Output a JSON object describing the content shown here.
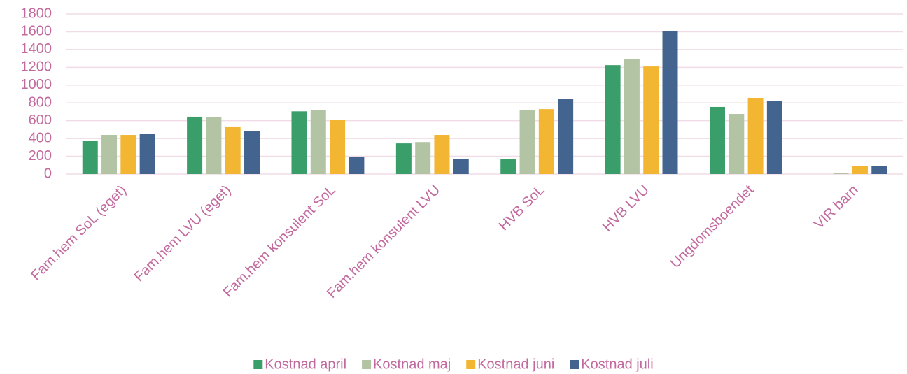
{
  "chart_data": {
    "type": "bar",
    "categories": [
      "Fam.hem SoL (eget)",
      "Fam.hem LVU (eget)",
      "Fam.hem konsulent SoL",
      "Fam.hem konsulent LVU",
      "HVB SoL",
      "HVB LVU",
      "Ungdomsboendet",
      "VIR barn"
    ],
    "series": [
      {
        "name": "Kostnad april",
        "color": "#3a9e6a",
        "values": [
          375,
          645,
          705,
          345,
          165,
          1225,
          755,
          0
        ]
      },
      {
        "name": "Kostnad maj",
        "color": "#b3c4a5",
        "values": [
          440,
          637,
          720,
          360,
          720,
          1295,
          676,
          15
        ]
      },
      {
        "name": "Kostnad juni",
        "color": "#f2b632",
        "values": [
          440,
          535,
          613,
          440,
          730,
          1210,
          857,
          94
        ]
      },
      {
        "name": "Kostnad juli",
        "color": "#43648f",
        "values": [
          450,
          487,
          189,
          173,
          848,
          1610,
          818,
          94
        ]
      }
    ],
    "ylim": [
      0,
      1800
    ],
    "yticks": [
      0,
      200,
      400,
      600,
      800,
      1000,
      1200,
      1400,
      1600,
      1800
    ],
    "grid": true,
    "legend": "bottom"
  }
}
